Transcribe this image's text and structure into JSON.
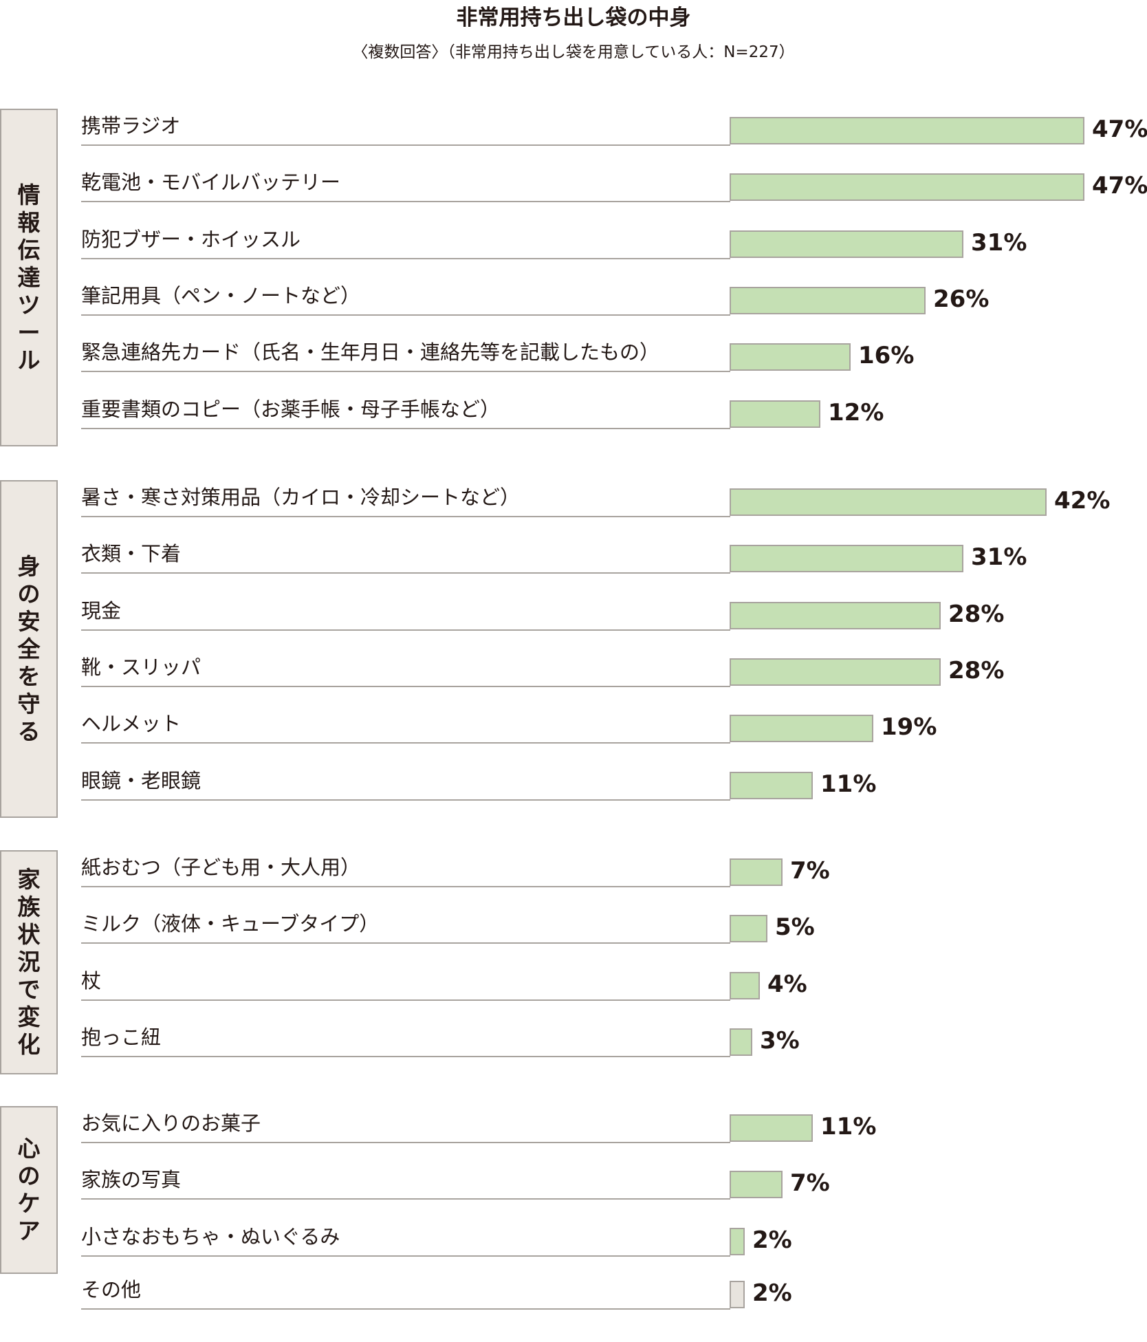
{
  "chart_data": {
    "type": "bar",
    "orientation": "horizontal",
    "title": "非常用持ち出し袋の中身",
    "subtitle": "〈複数回答〉（非常用持ち出し袋を用意している人：N=227）",
    "unit": "%",
    "xlim": [
      0,
      47
    ],
    "colors": {
      "bar": "#c5e0b4",
      "bar_other": "#e8e4de",
      "border": "#a8a39e",
      "group_bg": "#ede8e2"
    },
    "groups": [
      {
        "name": "情報伝達ツール",
        "items": [
          {
            "label": "携帯ラジオ",
            "value": 47,
            "value_label": "47%"
          },
          {
            "label": "乾電池・モバイルバッテリー",
            "value": 47,
            "value_label": "47%"
          },
          {
            "label": "防犯ブザー・ホイッスル",
            "value": 31,
            "value_label": "31%"
          },
          {
            "label": "筆記用具（ペン・ノートなど）",
            "value": 26,
            "value_label": "26%"
          },
          {
            "label": "緊急連絡先カード（氏名・生年月日・連絡先等を記載したもの）",
            "value": 16,
            "value_label": "16%"
          },
          {
            "label": "重要書類のコピー（お薬手帳・母子手帳など）",
            "value": 12,
            "value_label": "12%"
          }
        ]
      },
      {
        "name": "身の安全を守る",
        "items": [
          {
            "label": "暑さ・寒さ対策用品（カイロ・冷却シートなど）",
            "value": 42,
            "value_label": "42%"
          },
          {
            "label": "衣類・下着",
            "value": 31,
            "value_label": "31%"
          },
          {
            "label": "現金",
            "value": 28,
            "value_label": "28%"
          },
          {
            "label": "靴・スリッパ",
            "value": 28,
            "value_label": "28%"
          },
          {
            "label": "ヘルメット",
            "value": 19,
            "value_label": "19%"
          },
          {
            "label": "眼鏡・老眼鏡",
            "value": 11,
            "value_label": "11%"
          }
        ]
      },
      {
        "name": "家族状況で変化",
        "items": [
          {
            "label": "紙おむつ（子ども用・大人用）",
            "value": 7,
            "value_label": "7%"
          },
          {
            "label": "ミルク（液体・キューブタイプ）",
            "value": 5,
            "value_label": "5%"
          },
          {
            "label": "杖",
            "value": 4,
            "value_label": "4%"
          },
          {
            "label": "抱っこ紐",
            "value": 3,
            "value_label": "3%"
          }
        ]
      },
      {
        "name": "心のケア",
        "items": [
          {
            "label": "お気に入りのお菓子",
            "value": 11,
            "value_label": "11%"
          },
          {
            "label": "家族の写真",
            "value": 7,
            "value_label": "7%"
          },
          {
            "label": "小さなおもちゃ・ぬいぐるみ",
            "value": 2,
            "value_label": "2%"
          }
        ]
      },
      {
        "name": "",
        "items": [
          {
            "label": "その他",
            "value": 2,
            "value_label": "2%",
            "other": true
          }
        ]
      }
    ]
  }
}
